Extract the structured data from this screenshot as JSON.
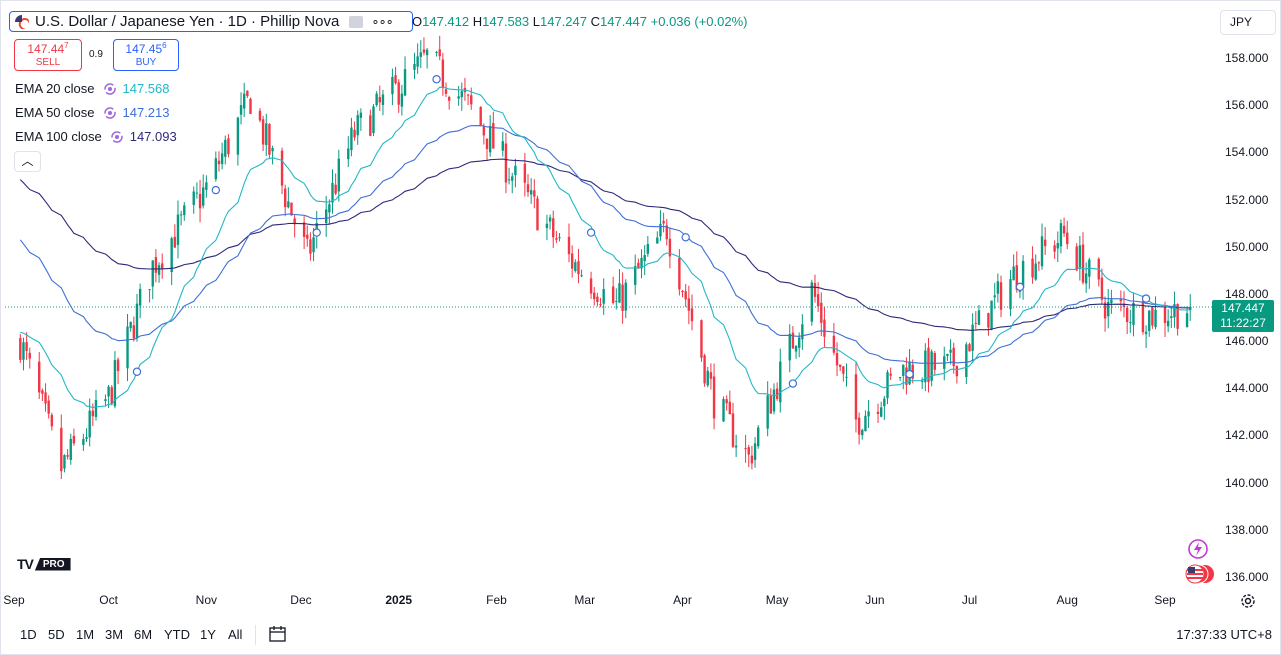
{
  "header": {
    "title": "U.S. Dollar / Japanese Yen · 1D · Phillip Nova",
    "more_icon": "more-dots-icon",
    "ohlc": {
      "o_label": "O",
      "o_value": "147.412",
      "h_label": "H",
      "h_value": "147.583",
      "l_label": "L",
      "l_value": "147.247",
      "c_label": "C",
      "c_value": "147.447",
      "change": "+0.036 (+0.02%)"
    }
  },
  "trade": {
    "sell_price": "147.44",
    "sell_price_sup": "7",
    "sell_label": "SELL",
    "spread": "0.9",
    "buy_price": "147.45",
    "buy_price_sup": "6",
    "buy_label": "BUY"
  },
  "indicators": [
    {
      "name": "EMA 20 close",
      "value": "147.568",
      "color": "#22b8c8"
    },
    {
      "name": "EMA 50 close",
      "value": "147.213",
      "color": "#3f6fd8"
    },
    {
      "name": "EMA 100 close",
      "value": "147.093",
      "color": "#2e2a7a"
    }
  ],
  "currency": "JPY",
  "last_price": {
    "value": "147.447",
    "countdown": "11:22:27",
    "color": "#089981"
  },
  "colors": {
    "up": "#089981",
    "down": "#f23645",
    "ema20": "#22b8c8",
    "ema50": "#3f6fd8",
    "ema100": "#2e2a7a",
    "accent": "#2962ff"
  },
  "chart_data": {
    "type": "candlestick",
    "y_ticks": [
      "158.000",
      "156.000",
      "154.000",
      "152.000",
      "150.000",
      "148.000",
      "146.000",
      "144.000",
      "142.000",
      "140.000",
      "138.000",
      "136.000"
    ],
    "ylim": [
      135.5,
      159.2
    ],
    "x_ticks": [
      "Sep",
      "Oct",
      "Nov",
      "Dec",
      "2025",
      "Feb",
      "Mar",
      "Apr",
      "May",
      "Jun",
      "Jul",
      "Aug",
      "Sep"
    ],
    "approx_daily_close_path": [
      {
        "date": "2024-09-03",
        "close": 146.0
      },
      {
        "date": "2024-09-16",
        "close": 140.6
      },
      {
        "date": "2024-10-01",
        "close": 143.6
      },
      {
        "date": "2024-10-15",
        "close": 149.2
      },
      {
        "date": "2024-11-01",
        "close": 152.5
      },
      {
        "date": "2024-11-15",
        "close": 156.3
      },
      {
        "date": "2024-12-03",
        "close": 149.6
      },
      {
        "date": "2024-12-18",
        "close": 154.8
      },
      {
        "date": "2025-01-10",
        "close": 158.0
      },
      {
        "date": "2025-01-24",
        "close": 155.8
      },
      {
        "date": "2025-02-10",
        "close": 152.2
      },
      {
        "date": "2025-02-24",
        "close": 149.5
      },
      {
        "date": "2025-03-11",
        "close": 147.5
      },
      {
        "date": "2025-03-27",
        "close": 150.8
      },
      {
        "date": "2025-04-11",
        "close": 143.5
      },
      {
        "date": "2025-04-22",
        "close": 141.0
      },
      {
        "date": "2025-05-12",
        "close": 148.2
      },
      {
        "date": "2025-05-26",
        "close": 142.6
      },
      {
        "date": "2025-06-10",
        "close": 144.8
      },
      {
        "date": "2025-06-25",
        "close": 144.9
      },
      {
        "date": "2025-07-15",
        "close": 148.8
      },
      {
        "date": "2025-07-31",
        "close": 150.5
      },
      {
        "date": "2025-08-14",
        "close": 147.4
      },
      {
        "date": "2025-08-29",
        "close": 147.1
      },
      {
        "date": "2025-09-09",
        "close": 147.447
      }
    ]
  },
  "logo": "TradingView PRO",
  "logo_tv": "TV",
  "logo_pro": "PRO",
  "range_buttons": [
    "1D",
    "5D",
    "1M",
    "3M",
    "6M",
    "YTD",
    "1Y",
    "All"
  ],
  "clock": "17:37:33 UTC+8"
}
